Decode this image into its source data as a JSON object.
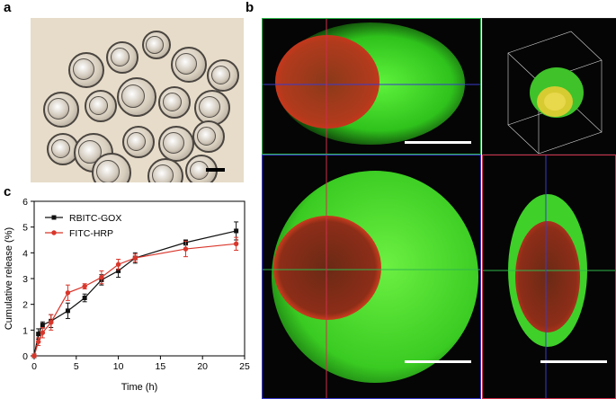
{
  "panels": {
    "a": {
      "label": "a"
    },
    "b": {
      "label": "b"
    },
    "c": {
      "label": "c"
    }
  },
  "colors": {
    "rbitc_gox": "#111111",
    "fitc_hrp": "#d9362b",
    "green_channel": "#3fe52a",
    "red_channel": "#b7271c",
    "top_frame": "#2fb84c",
    "main_frame": "#3a3acc",
    "side_frame": "#cc2f4a"
  },
  "chart_data": {
    "type": "line",
    "xlabel": "Time (h)",
    "ylabel": "Cumulative release (%)",
    "xlim": [
      0,
      25
    ],
    "ylim": [
      0,
      6
    ],
    "xticks": [
      0,
      5,
      10,
      15,
      20,
      25
    ],
    "yticks": [
      0,
      1,
      2,
      3,
      4,
      5,
      6
    ],
    "legend_position": "top-left",
    "series": [
      {
        "name": "RBITC-GOX",
        "color": "#111111",
        "marker": "square",
        "x": [
          0,
          0.5,
          1,
          2,
          4,
          6,
          8,
          10,
          12,
          18,
          24
        ],
        "y": [
          0,
          0.85,
          1.2,
          1.35,
          1.75,
          2.25,
          2.95,
          3.3,
          3.8,
          4.4,
          4.85
        ],
        "err": [
          0.05,
          0.2,
          0.12,
          0.25,
          0.3,
          0.15,
          0.2,
          0.25,
          0.2,
          0.1,
          0.35
        ]
      },
      {
        "name": "FITC-HRP",
        "color": "#d9362b",
        "marker": "circle",
        "x": [
          0,
          0.5,
          1,
          2,
          4,
          6,
          8,
          10,
          12,
          18,
          24
        ],
        "y": [
          0,
          0.55,
          0.9,
          1.3,
          2.45,
          2.7,
          3.05,
          3.55,
          3.8,
          4.15,
          4.35
        ],
        "err": [
          0.05,
          0.15,
          0.2,
          0.3,
          0.3,
          0.1,
          0.25,
          0.2,
          0.15,
          0.3,
          0.25
        ]
      }
    ]
  }
}
